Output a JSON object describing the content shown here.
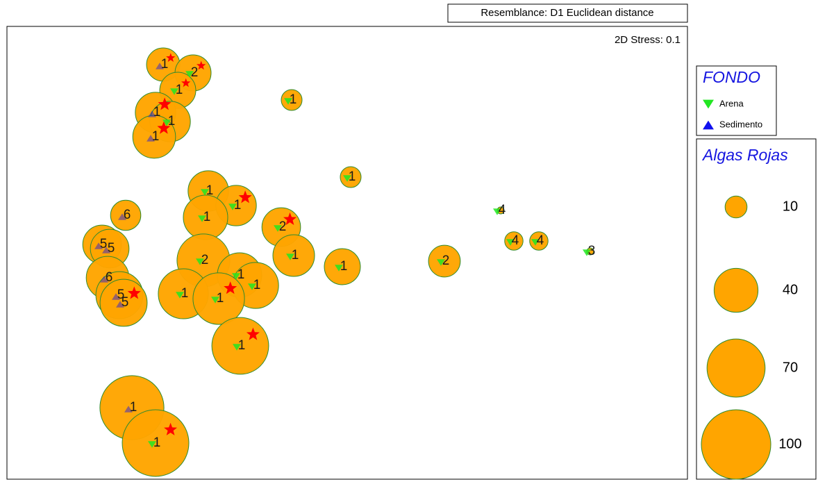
{
  "chart_data": {
    "type": "bubble",
    "title": "Resemblance: D1 Euclidean distance",
    "annotation": "2D Stress: 0.1",
    "xlim": [
      0,
      980
    ],
    "ylim": [
      0,
      652
    ],
    "x": [
      225,
      268,
      246,
      214,
      235,
      212,
      410,
      495,
      290,
      330,
      286,
      395,
      171,
      137,
      148,
      413,
      283,
      483,
      630,
      711,
      730,
      766,
      840,
      145,
      335,
      358,
      254,
      305,
      162,
      168,
      336,
      180,
      214
    ],
    "y": [
      597,
      585,
      560,
      528,
      515,
      493,
      546,
      435,
      415,
      394,
      377,
      363,
      380,
      338,
      332,
      322,
      315,
      306,
      314,
      387,
      343,
      343,
      328,
      290,
      294,
      279,
      267,
      260,
      265,
      254,
      192,
      103,
      52
    ],
    "sizes": [
      23,
      27,
      27,
      34,
      34,
      38,
      9,
      9,
      34,
      34,
      41,
      31,
      19,
      31,
      31,
      36,
      58,
      27,
      21,
      1,
      7,
      7,
      1,
      38,
      41,
      44,
      52,
      55,
      46,
      46,
      67,
      85,
      92
    ],
    "labels": [
      "1",
      "2",
      "1",
      "1",
      "1",
      "1",
      "1",
      "1",
      "1",
      "1",
      "1",
      "2",
      "6",
      "5",
      "5",
      "1",
      "2",
      "1",
      "2",
      "4",
      "4",
      "4",
      "3",
      "6",
      "1",
      "1",
      "1",
      "1",
      "5",
      "5",
      "1",
      "1",
      "1"
    ],
    "fondo": [
      1,
      0,
      0,
      1,
      0,
      1,
      0,
      0,
      0,
      0,
      0,
      0,
      1,
      1,
      1,
      0,
      0,
      0,
      0,
      0,
      0,
      0,
      0,
      1,
      0,
      0,
      0,
      0,
      1,
      1,
      0,
      1,
      0
    ],
    "star": [
      true,
      true,
      true,
      true,
      false,
      true,
      false,
      false,
      false,
      true,
      false,
      true,
      false,
      false,
      false,
      false,
      false,
      false,
      false,
      false,
      false,
      false,
      false,
      false,
      false,
      false,
      false,
      true,
      false,
      true,
      true,
      false,
      true
    ],
    "bubble_color": "#ffa500",
    "star_color": "#ff0000",
    "fondo_legend": {
      "title": "FONDO",
      "items": [
        {
          "name": "Arena",
          "color": "#22e622",
          "shape": "down"
        },
        {
          "name": "Sedimento",
          "color": "#1010ee",
          "shape": "up"
        }
      ]
    },
    "size_legend": {
      "title": "Algas Rojas",
      "values": [
        10,
        40,
        70,
        100
      ]
    }
  }
}
